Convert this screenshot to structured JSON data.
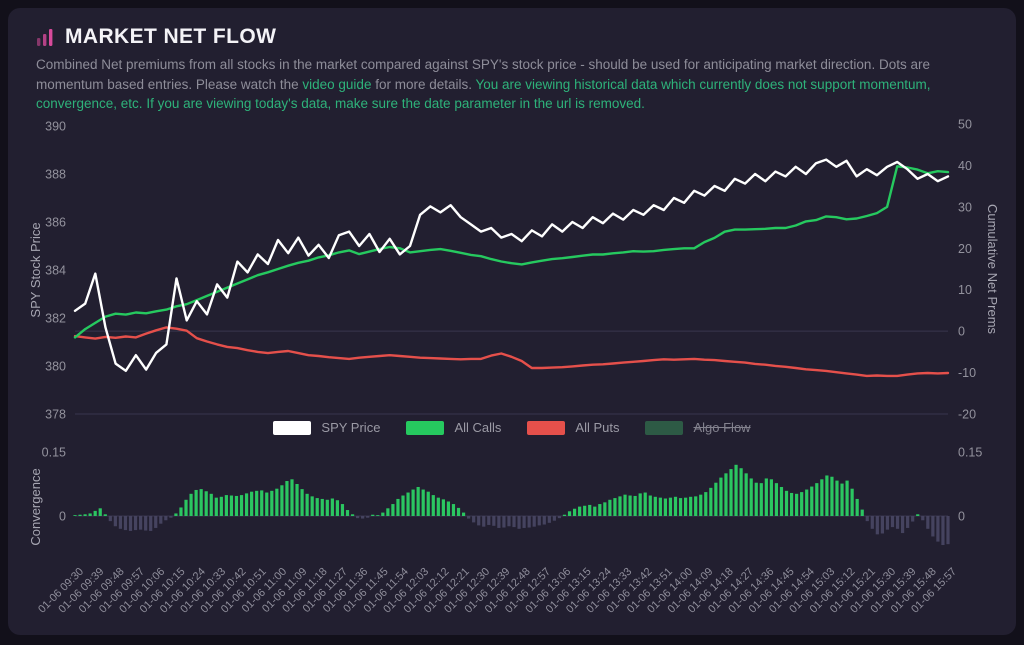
{
  "header": {
    "title": "MARKET NET FLOW",
    "icon": "bar-chart-icon",
    "icon_color": "#d84a9b"
  },
  "description": {
    "text_1": "Combined Net premiums from all stocks in the market compared against SPY's stock price - should be used for anticipating market direction. Dots are momentum based entries. Please watch the ",
    "link_text": "video guide",
    "text_2": " for more details. ",
    "warning_text": "You are viewing historical data which currently does not support momentum, convergence, etc. If you are viewing today's data, make sure the date parameter in the url is removed.",
    "muted_color": "#8e8d99",
    "green_color": "#2eb27a"
  },
  "legend": {
    "items": [
      {
        "label": "SPY Price",
        "color": "#ffffff",
        "disabled": false
      },
      {
        "label": "All Calls",
        "color": "#26c95f",
        "disabled": false
      },
      {
        "label": "All Puts",
        "color": "#e5504b",
        "disabled": false
      },
      {
        "label": "Algo Flow",
        "color": "#2d5a45",
        "disabled": true
      }
    ]
  },
  "chart_data": [
    {
      "type": "line",
      "title": "SPY price vs cumulative net premiums",
      "ylabel_left": "SPY Stock Price",
      "ylabel_right": "Cumulative Net Prems",
      "ylim_left": [
        378,
        390
      ],
      "yticks_left": [
        390,
        388,
        386,
        384,
        382,
        380,
        378
      ],
      "ylim_right": [
        -20,
        50
      ],
      "yticks_right": [
        50,
        40,
        30,
        20,
        10,
        0,
        -10,
        -20
      ],
      "grid": "zero-line-only",
      "legend_position": "bottom-center",
      "x_labels": [
        "01-06 09:30",
        "01-06 09:39",
        "01-06 09:48",
        "01-06 09:57",
        "01-06 10:06",
        "01-06 10:15",
        "01-06 10:24",
        "01-06 10:33",
        "01-06 10:42",
        "01-06 10:51",
        "01-06 11:00",
        "01-06 11:09",
        "01-06 11:18",
        "01-06 11:27",
        "01-06 11:36",
        "01-06 11:45",
        "01-06 11:54",
        "01-06 12:03",
        "01-06 12:12",
        "01-06 12:21",
        "01-06 12:30",
        "01-06 12:39",
        "01-06 12:48",
        "01-06 12:57",
        "01-06 13:06",
        "01-06 13:15",
        "01-06 13:24",
        "01-06 13:33",
        "01-06 13:42",
        "01-06 13:51",
        "01-06 14:00",
        "01-06 14:09",
        "01-06 14:18",
        "01-06 14:27",
        "01-06 14:36",
        "01-06 14:45",
        "01-06 14:54",
        "01-06 15:03",
        "01-06 15:12",
        "01-06 15:21",
        "01-06 15:30",
        "01-06 15:39",
        "01-06 15:48",
        "01-06 15:57"
      ],
      "series": [
        {
          "name": "SPY Price",
          "axis": "left",
          "color": "#ffffff",
          "values": [
            382.3,
            382.6,
            383.85,
            381.6,
            380.1,
            379.8,
            380.45,
            379.85,
            380.55,
            380.9,
            383.65,
            381.9,
            382.7,
            382.15,
            383.4,
            382.85,
            384.35,
            383.9,
            384.65,
            384.25,
            385.25,
            384.7,
            385.35,
            384.6,
            385.05,
            384.5,
            385.45,
            385.6,
            385.0,
            385.5,
            384.75,
            385.3,
            384.65,
            385.0,
            386.3,
            386.65,
            386.4,
            386.7,
            386.2,
            385.9,
            385.6,
            385.75,
            385.35,
            385.5,
            385.2,
            385.65,
            385.4,
            385.9,
            385.6,
            386.0,
            385.75,
            386.2,
            385.95,
            386.35,
            386.1,
            386.5,
            386.3,
            386.7,
            386.5,
            387.0,
            386.8,
            387.3,
            387.1,
            387.5,
            387.3,
            387.8,
            387.6,
            388.0,
            387.7,
            388.1,
            387.9,
            388.3,
            388.0,
            388.45,
            388.6,
            388.3,
            388.55,
            387.9,
            388.2,
            387.95,
            388.3,
            388.5,
            388.2,
            387.8,
            388.0,
            387.7,
            387.9
          ]
        },
        {
          "name": "All Calls",
          "axis": "right",
          "color": "#26c95f",
          "values": [
            -1.5,
            0.5,
            2.0,
            3.5,
            4.2,
            4.0,
            4.5,
            4.3,
            4.8,
            5.2,
            6.0,
            6.5,
            7.5,
            8.5,
            9.5,
            10.5,
            11.5,
            12.5,
            13.5,
            14.2,
            15.0,
            15.8,
            16.5,
            17.0,
            17.8,
            18.3,
            19.0,
            19.5,
            18.6,
            19.2,
            19.8,
            20.3,
            20.0,
            19.0,
            19.3,
            19.6,
            19.8,
            19.4,
            18.9,
            18.4,
            18.1,
            17.4,
            16.8,
            16.4,
            16.1,
            16.6,
            17.0,
            17.4,
            17.6,
            17.9,
            18.2,
            18.5,
            18.5,
            18.8,
            19.0,
            19.3,
            19.2,
            19.3,
            19.6,
            19.8,
            20.0,
            20.0,
            21.5,
            22.5,
            24.0,
            24.5,
            24.5,
            24.6,
            24.7,
            24.9,
            24.9,
            25.5,
            26.5,
            26.8,
            27.7,
            27.5,
            27.0,
            27.2,
            27.8,
            28.5,
            30.0,
            39.8,
            39.5,
            39.0,
            38.1,
            38.6,
            38.4
          ]
        },
        {
          "name": "All Puts",
          "axis": "right",
          "color": "#e5504b",
          "values": [
            -1.2,
            -1.5,
            -1.8,
            -1.4,
            -1.6,
            -1.3,
            -1.5,
            -0.6,
            0.2,
            0.9,
            0.6,
            0.1,
            -1.7,
            -2.5,
            -3.2,
            -3.8,
            -4.1,
            -4.6,
            -5.0,
            -5.3,
            -5.0,
            -4.8,
            -5.3,
            -5.8,
            -6.0,
            -6.3,
            -6.5,
            -6.7,
            -6.4,
            -6.2,
            -6.0,
            -5.8,
            -6.0,
            -6.2,
            -6.4,
            -6.5,
            -6.6,
            -6.7,
            -6.8,
            -6.7,
            -6.7,
            -5.9,
            -5.4,
            -6.2,
            -7.2,
            -8.9,
            -8.9,
            -8.8,
            -8.7,
            -8.5,
            -8.3,
            -8.1,
            -8.0,
            -7.8,
            -7.6,
            -7.4,
            -7.2,
            -7.0,
            -6.8,
            -6.9,
            -6.8,
            -6.7,
            -6.9,
            -7.0,
            -7.2,
            -7.4,
            -7.6,
            -7.9,
            -8.1,
            -8.4,
            -8.6,
            -8.9,
            -9.2,
            -9.4,
            -9.6,
            -9.9,
            -10.2,
            -10.5,
            -10.8,
            -10.7,
            -10.8,
            -10.8,
            -10.5,
            -10.2,
            -10.1,
            -10.2,
            -10.1
          ]
        },
        {
          "name": "Algo Flow",
          "axis": "right",
          "color": "#2d5a45",
          "disabled": true,
          "values": []
        }
      ]
    },
    {
      "type": "bar",
      "title": "Convergence",
      "ylabel_left": "Convergence",
      "ylim": [
        -0.1,
        0.15
      ],
      "yticks": [
        0.15,
        0
      ],
      "positive_color": "#2bc661",
      "negative_color": "#45435f",
      "values": [
        0.002,
        0.003,
        0.004,
        0.006,
        0.012,
        0.018,
        0.004,
        -0.012,
        -0.024,
        -0.03,
        -0.033,
        -0.035,
        -0.033,
        -0.032,
        -0.034,
        -0.035,
        -0.028,
        -0.018,
        -0.01,
        -0.004,
        0.006,
        0.02,
        0.038,
        0.052,
        0.061,
        0.063,
        0.058,
        0.052,
        0.043,
        0.045,
        0.049,
        0.048,
        0.047,
        0.049,
        0.053,
        0.057,
        0.059,
        0.06,
        0.055,
        0.059,
        0.064,
        0.072,
        0.082,
        0.086,
        0.075,
        0.063,
        0.052,
        0.046,
        0.042,
        0.04,
        0.038,
        0.041,
        0.037,
        0.028,
        0.014,
        0.004,
        -0.005,
        -0.006,
        -0.004,
        0.003,
        0.002,
        0.008,
        0.018,
        0.028,
        0.04,
        0.048,
        0.055,
        0.062,
        0.068,
        0.062,
        0.057,
        0.049,
        0.043,
        0.039,
        0.034,
        0.028,
        0.019,
        0.008,
        -0.006,
        -0.015,
        -0.022,
        -0.025,
        -0.021,
        -0.023,
        -0.028,
        -0.027,
        -0.024,
        -0.026,
        -0.03,
        -0.028,
        -0.027,
        -0.025,
        -0.022,
        -0.02,
        -0.016,
        -0.011,
        -0.005,
        0.003,
        0.011,
        0.017,
        0.022,
        0.024,
        0.026,
        0.022,
        0.028,
        0.032,
        0.038,
        0.042,
        0.046,
        0.05,
        0.048,
        0.047,
        0.053,
        0.055,
        0.048,
        0.045,
        0.043,
        0.041,
        0.043,
        0.045,
        0.042,
        0.043,
        0.045,
        0.046,
        0.05,
        0.056,
        0.066,
        0.078,
        0.09,
        0.1,
        0.11,
        0.12,
        0.112,
        0.1,
        0.088,
        0.078,
        0.077,
        0.088,
        0.086,
        0.077,
        0.068,
        0.059,
        0.054,
        0.052,
        0.056,
        0.062,
        0.069,
        0.077,
        0.086,
        0.095,
        0.092,
        0.083,
        0.076,
        0.083,
        0.064,
        0.04,
        0.015,
        -0.012,
        -0.03,
        -0.043,
        -0.041,
        -0.032,
        -0.026,
        -0.03,
        -0.04,
        -0.028,
        -0.013,
        0.004,
        -0.01,
        -0.03,
        -0.048,
        -0.06,
        -0.068,
        -0.066
      ]
    }
  ],
  "colors": {
    "page_bg": "#12101a",
    "card_bg": "#221f30",
    "grid_line": "#38364e",
    "tick_label": "#93929d",
    "axis_title": "#a7a6b2",
    "x_label": "#8f8e9b"
  }
}
